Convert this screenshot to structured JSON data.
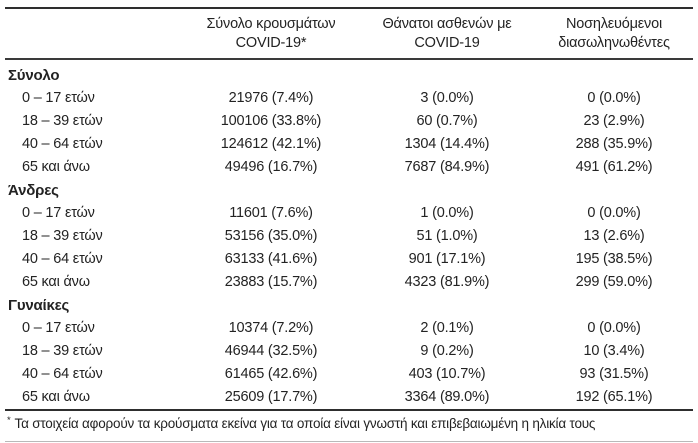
{
  "table": {
    "columns": [
      {
        "line1": "Σύνολο κρουσμάτων",
        "line2": "COVID-19*"
      },
      {
        "line1": "Θάνατοι ασθενών με",
        "line2": "COVID-19"
      },
      {
        "line1": "Νοσηλευόμενοι",
        "line2": "διασωληνωθέντες"
      }
    ],
    "sections": [
      {
        "title": "Σύνολο",
        "rows": [
          {
            "label": "0 – 17 ετών",
            "cases": "21976 (7.4%)",
            "deaths": "3 (0.0%)",
            "intubated": "0 (0.0%)"
          },
          {
            "label": "18 – 39 ετών",
            "cases": "100106 (33.8%)",
            "deaths": "60 (0.7%)",
            "intubated": "23 (2.9%)"
          },
          {
            "label": "40 – 64 ετών",
            "cases": "124612 (42.1%)",
            "deaths": "1304 (14.4%)",
            "intubated": "288 (35.9%)"
          },
          {
            "label": "65 και άνω",
            "cases": "49496 (16.7%)",
            "deaths": "7687 (84.9%)",
            "intubated": "491 (61.2%)"
          }
        ]
      },
      {
        "title": "Άνδρες",
        "rows": [
          {
            "label": "0 – 17 ετών",
            "cases": "11601 (7.6%)",
            "deaths": "1 (0.0%)",
            "intubated": "0 (0.0%)"
          },
          {
            "label": "18 – 39 ετών",
            "cases": "53156 (35.0%)",
            "deaths": "51 (1.0%)",
            "intubated": "13 (2.6%)"
          },
          {
            "label": "40 – 64 ετών",
            "cases": "63133 (41.6%)",
            "deaths": "901 (17.1%)",
            "intubated": "195 (38.5%)"
          },
          {
            "label": "65 και άνω",
            "cases": "23883 (15.7%)",
            "deaths": "4323 (81.9%)",
            "intubated": "299 (59.0%)"
          }
        ]
      },
      {
        "title": "Γυναίκες",
        "rows": [
          {
            "label": "0 – 17 ετών",
            "cases": "10374 (7.2%)",
            "deaths": "2 (0.1%)",
            "intubated": "0 (0.0%)"
          },
          {
            "label": "18 – 39 ετών",
            "cases": "46944 (32.5%)",
            "deaths": "9 (0.2%)",
            "intubated": "10 (3.4%)"
          },
          {
            "label": "40 – 64 ετών",
            "cases": "61465 (42.6%)",
            "deaths": "403 (10.7%)",
            "intubated": "93 (31.5%)"
          },
          {
            "label": "65 και άνω",
            "cases": "25609 (17.7%)",
            "deaths": "3364 (89.0%)",
            "intubated": "192 (65.1%)"
          }
        ]
      }
    ],
    "footnote": {
      "marker": "*",
      "text": "Τα στοιχεία αφορούν τα κρούσματα εκείνα για τα οποία είναι γνωστή και επιβεβαιωμένη η ηλικία τους"
    }
  },
  "colors": {
    "text": "#232323",
    "rule_dark": "#2e2e2e",
    "rule_light": "#b9b9b9",
    "background": "#ffffff"
  }
}
